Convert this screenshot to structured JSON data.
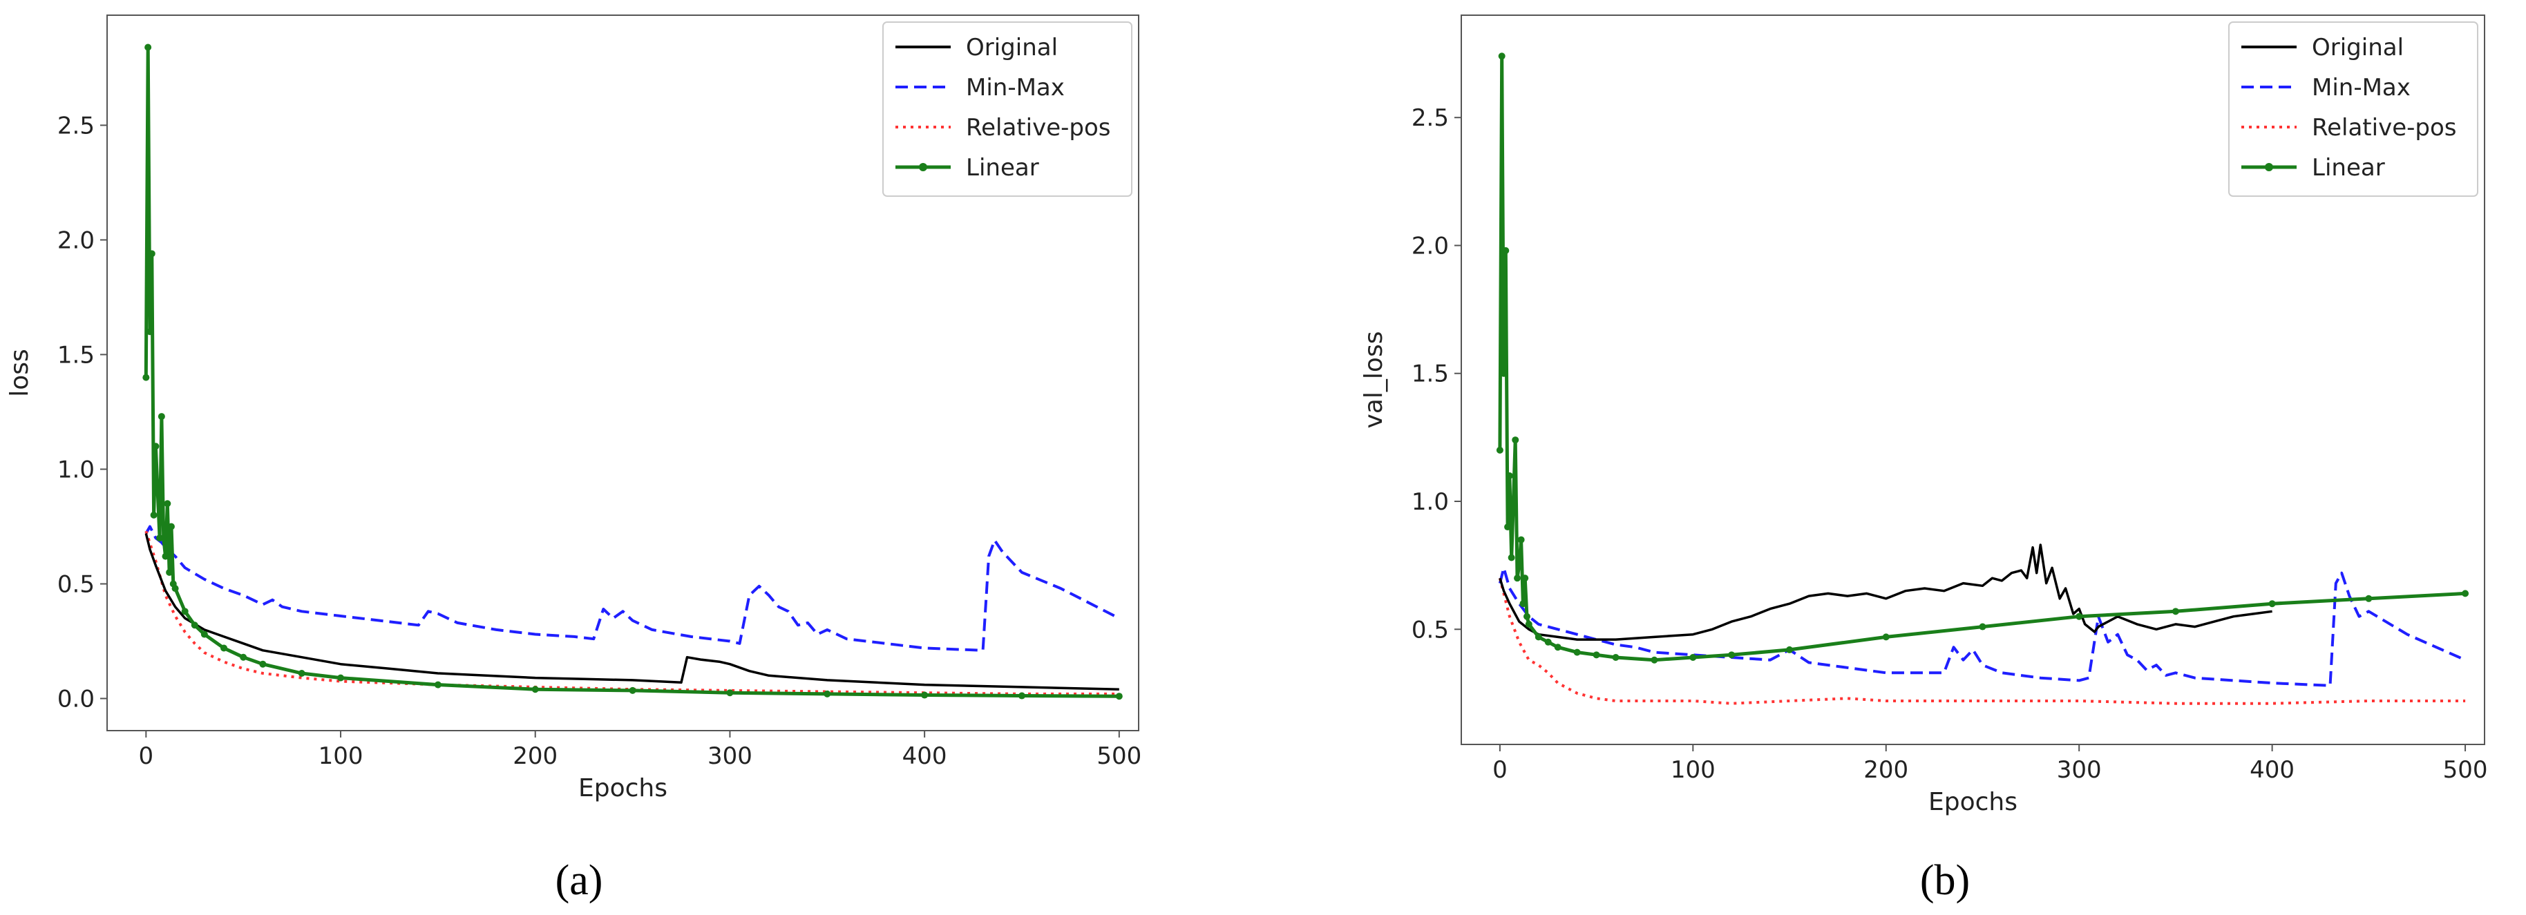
{
  "chart_data": [
    {
      "type": "line",
      "caption": "(a)",
      "xlabel": "Epochs",
      "ylabel": "loss",
      "xlim": [
        -20,
        510
      ],
      "ylim": [
        -0.14,
        2.98
      ],
      "xticks": [
        "0",
        "100",
        "200",
        "300",
        "400",
        "500"
      ],
      "yticks": [
        "0.0",
        "0.5",
        "1.0",
        "1.5",
        "2.0",
        "2.5"
      ],
      "xtick_values": [
        0,
        100,
        200,
        300,
        400,
        500
      ],
      "ytick_values": [
        0.0,
        0.5,
        1.0,
        1.5,
        2.0,
        2.5
      ],
      "legend": "top-right",
      "grid": false,
      "series": [
        {
          "name": "Original",
          "color": "#000000",
          "style": "solid",
          "x": [
            0,
            2,
            5,
            10,
            15,
            20,
            30,
            40,
            50,
            60,
            80,
            100,
            125,
            150,
            175,
            200,
            225,
            250,
            275,
            278,
            285,
            295,
            300,
            310,
            320,
            350,
            400,
            450,
            500
          ],
          "y": [
            0.72,
            0.65,
            0.58,
            0.47,
            0.4,
            0.35,
            0.3,
            0.27,
            0.24,
            0.21,
            0.18,
            0.15,
            0.13,
            0.11,
            0.1,
            0.09,
            0.085,
            0.08,
            0.07,
            0.18,
            0.17,
            0.16,
            0.15,
            0.12,
            0.1,
            0.08,
            0.06,
            0.05,
            0.04
          ]
        },
        {
          "name": "Min-Max",
          "color": "#1f1fff",
          "style": "dashed",
          "x": [
            0,
            2,
            5,
            8,
            10,
            15,
            20,
            30,
            40,
            50,
            60,
            65,
            70,
            80,
            100,
            120,
            140,
            145,
            150,
            160,
            180,
            200,
            220,
            230,
            235,
            240,
            245,
            250,
            260,
            280,
            300,
            305,
            310,
            315,
            320,
            325,
            330,
            335,
            340,
            345,
            350,
            360,
            380,
            400,
            430,
            433,
            436,
            440,
            450,
            470,
            500
          ],
          "y": [
            0.72,
            0.75,
            0.7,
            0.68,
            0.66,
            0.62,
            0.57,
            0.52,
            0.48,
            0.45,
            0.41,
            0.43,
            0.4,
            0.38,
            0.36,
            0.34,
            0.32,
            0.38,
            0.37,
            0.33,
            0.3,
            0.28,
            0.27,
            0.26,
            0.39,
            0.35,
            0.38,
            0.34,
            0.3,
            0.27,
            0.25,
            0.24,
            0.45,
            0.49,
            0.45,
            0.4,
            0.38,
            0.32,
            0.33,
            0.28,
            0.3,
            0.26,
            0.24,
            0.22,
            0.21,
            0.62,
            0.69,
            0.64,
            0.55,
            0.48,
            0.35
          ]
        },
        {
          "name": "Relative-pos",
          "color": "#ff3333",
          "style": "dotted",
          "x": [
            0,
            5,
            10,
            15,
            20,
            25,
            30,
            40,
            50,
            60,
            80,
            100,
            150,
            200,
            250,
            300,
            350,
            400,
            450,
            500
          ],
          "y": [
            0.73,
            0.6,
            0.45,
            0.36,
            0.29,
            0.24,
            0.2,
            0.16,
            0.13,
            0.11,
            0.09,
            0.075,
            0.06,
            0.05,
            0.04,
            0.035,
            0.03,
            0.025,
            0.02,
            0.02
          ]
        },
        {
          "name": "Linear",
          "color": "#1a7f1a",
          "style": "solid-marker",
          "x": [
            0,
            1,
            2,
            3,
            4,
            5,
            6,
            7,
            8,
            9,
            10,
            11,
            12,
            13,
            14,
            15,
            20,
            25,
            30,
            40,
            50,
            60,
            80,
            100,
            150,
            200,
            250,
            300,
            350,
            400,
            450,
            500
          ],
          "y": [
            1.4,
            2.84,
            1.6,
            1.94,
            0.8,
            1.1,
            0.9,
            0.7,
            1.23,
            0.7,
            0.62,
            0.85,
            0.55,
            0.75,
            0.5,
            0.48,
            0.38,
            0.32,
            0.28,
            0.22,
            0.18,
            0.15,
            0.11,
            0.09,
            0.06,
            0.04,
            0.035,
            0.025,
            0.02,
            0.015,
            0.012,
            0.01
          ]
        }
      ]
    },
    {
      "type": "line",
      "caption": "(b)",
      "xlabel": "Epochs",
      "ylabel": "val_loss",
      "xlim": [
        -20,
        510
      ],
      "ylim": [
        0.05,
        2.9
      ],
      "xticks": [
        "0",
        "100",
        "200",
        "300",
        "400",
        "500"
      ],
      "yticks": [
        "0.5",
        "1.0",
        "1.5",
        "2.0",
        "2.5"
      ],
      "xtick_values": [
        0,
        100,
        200,
        300,
        400,
        500
      ],
      "ytick_values": [
        0.5,
        1.0,
        1.5,
        2.0,
        2.5
      ],
      "legend": "top-right",
      "grid": false,
      "series": [
        {
          "name": "Original",
          "color": "#000000",
          "style": "solid",
          "x": [
            0,
            2,
            5,
            10,
            15,
            20,
            30,
            40,
            50,
            60,
            80,
            100,
            110,
            120,
            130,
            140,
            150,
            160,
            170,
            180,
            190,
            200,
            210,
            220,
            230,
            240,
            250,
            255,
            260,
            265,
            270,
            273,
            276,
            278,
            280,
            283,
            286,
            290,
            293,
            297,
            300,
            303,
            308,
            310,
            320,
            330,
            340,
            350,
            360,
            370,
            380,
            390,
            400
          ],
          "y": [
            0.7,
            0.65,
            0.6,
            0.53,
            0.5,
            0.48,
            0.47,
            0.46,
            0.46,
            0.46,
            0.47,
            0.48,
            0.5,
            0.53,
            0.55,
            0.58,
            0.6,
            0.63,
            0.64,
            0.63,
            0.64,
            0.62,
            0.65,
            0.66,
            0.65,
            0.68,
            0.67,
            0.7,
            0.69,
            0.72,
            0.73,
            0.7,
            0.82,
            0.72,
            0.83,
            0.68,
            0.74,
            0.62,
            0.66,
            0.56,
            0.58,
            0.52,
            0.49,
            0.51,
            0.55,
            0.52,
            0.5,
            0.52,
            0.51,
            0.53,
            0.55,
            0.56,
            0.57
          ]
        },
        {
          "name": "Min-Max",
          "color": "#1f1fff",
          "style": "dashed",
          "x": [
            0,
            2,
            5,
            10,
            15,
            20,
            30,
            40,
            50,
            60,
            70,
            80,
            100,
            120,
            140,
            150,
            160,
            200,
            230,
            235,
            240,
            245,
            250,
            260,
            280,
            300,
            305,
            310,
            315,
            320,
            325,
            330,
            335,
            340,
            345,
            350,
            360,
            380,
            400,
            430,
            433,
            436,
            440,
            445,
            450,
            470,
            500
          ],
          "y": [
            0.68,
            0.74,
            0.66,
            0.6,
            0.55,
            0.52,
            0.5,
            0.48,
            0.46,
            0.44,
            0.43,
            0.41,
            0.4,
            0.39,
            0.38,
            0.42,
            0.37,
            0.33,
            0.33,
            0.43,
            0.38,
            0.42,
            0.36,
            0.33,
            0.31,
            0.3,
            0.31,
            0.55,
            0.45,
            0.48,
            0.4,
            0.38,
            0.34,
            0.36,
            0.32,
            0.33,
            0.31,
            0.3,
            0.29,
            0.28,
            0.68,
            0.72,
            0.63,
            0.55,
            0.57,
            0.48,
            0.38
          ]
        },
        {
          "name": "Relative-pos",
          "color": "#ff3333",
          "style": "dotted",
          "x": [
            0,
            5,
            10,
            15,
            20,
            25,
            30,
            40,
            50,
            60,
            80,
            100,
            120,
            150,
            180,
            200,
            250,
            300,
            350,
            400,
            450,
            500
          ],
          "y": [
            0.7,
            0.55,
            0.45,
            0.38,
            0.36,
            0.33,
            0.29,
            0.25,
            0.23,
            0.22,
            0.22,
            0.22,
            0.21,
            0.22,
            0.23,
            0.22,
            0.22,
            0.22,
            0.21,
            0.21,
            0.22,
            0.22
          ]
        },
        {
          "name": "Linear",
          "color": "#1a7f1a",
          "style": "solid-marker",
          "x": [
            0,
            1,
            2,
            3,
            4,
            5,
            6,
            7,
            8,
            9,
            10,
            11,
            12,
            13,
            14,
            15,
            20,
            25,
            30,
            40,
            50,
            60,
            80,
            100,
            120,
            150,
            200,
            250,
            300,
            350,
            400,
            450,
            500
          ],
          "y": [
            1.2,
            2.74,
            1.5,
            1.98,
            0.9,
            1.1,
            0.78,
            1.0,
            1.24,
            0.7,
            0.75,
            0.85,
            0.6,
            0.7,
            0.55,
            0.52,
            0.47,
            0.45,
            0.43,
            0.41,
            0.4,
            0.39,
            0.38,
            0.39,
            0.4,
            0.42,
            0.47,
            0.51,
            0.55,
            0.57,
            0.6,
            0.62,
            0.64
          ]
        }
      ]
    }
  ]
}
